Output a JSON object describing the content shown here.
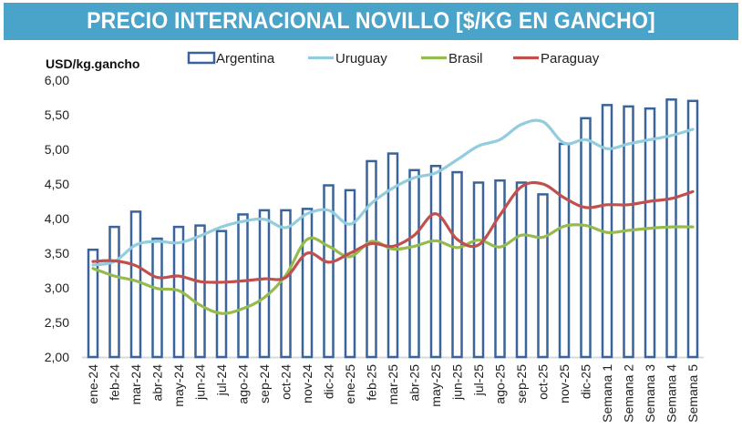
{
  "header": {
    "title": "PRECIO INTERNACIONAL NOVILLO [$/KG EN GANCHO]"
  },
  "chart_data": {
    "type": "bar+line",
    "title": "PRECIO INTERNACIONAL NOVILLO [$/KG EN GANCHO]",
    "ylabel": "USD/kg.gancho",
    "xlabel": "",
    "ylim": [
      2.0,
      6.0
    ],
    "yticks": [
      "2,00",
      "2,50",
      "3,00",
      "3,50",
      "4,00",
      "4,50",
      "5,00",
      "5,50",
      "6,00"
    ],
    "ytick_values": [
      2.0,
      2.5,
      3.0,
      3.5,
      4.0,
      4.5,
      5.0,
      5.5,
      6.0
    ],
    "grid": false,
    "legend_position": "top",
    "categories": [
      "ene-24",
      "feb-24",
      "mar-24",
      "abr-24",
      "may-24",
      "jun-24",
      "jul-24",
      "ago-24",
      "sep-24",
      "oct-24",
      "nov-24",
      "dic-24",
      "ene-25",
      "feb-25",
      "mar-25",
      "abr-25",
      "may-25",
      "jun-25",
      "jul-25",
      "ago-25",
      "sep-25",
      "oct-25",
      "nov-25",
      "dic-25",
      "Semana 1",
      "Semana 2",
      "Semana 3",
      "Semana 4",
      "Semana 5"
    ],
    "series": [
      {
        "name": "Argentina",
        "kind": "bar",
        "color": "#3a6499",
        "values": [
          3.55,
          3.88,
          4.1,
          3.71,
          3.88,
          3.9,
          3.82,
          4.06,
          4.12,
          4.12,
          4.14,
          4.48,
          4.41,
          4.83,
          4.94,
          4.7,
          4.76,
          4.67,
          4.52,
          4.55,
          4.52,
          4.35,
          5.08,
          5.45,
          5.64,
          5.62,
          5.59,
          5.72,
          5.7
        ]
      },
      {
        "name": "Uruguay",
        "kind": "line",
        "color": "#92cddf",
        "values": [
          3.33,
          3.38,
          3.62,
          3.67,
          3.65,
          3.75,
          3.88,
          3.96,
          3.99,
          3.87,
          4.07,
          4.12,
          3.92,
          4.22,
          4.44,
          4.59,
          4.66,
          4.85,
          5.05,
          5.14,
          5.36,
          5.4,
          5.09,
          5.14,
          5.01,
          5.08,
          5.14,
          5.2,
          5.29
        ]
      },
      {
        "name": "Brasil",
        "kind": "line",
        "color": "#95bb4f",
        "values": [
          3.28,
          3.17,
          3.1,
          2.99,
          2.96,
          2.75,
          2.63,
          2.7,
          2.86,
          3.18,
          3.7,
          3.6,
          3.45,
          3.67,
          3.56,
          3.6,
          3.68,
          3.58,
          3.69,
          3.59,
          3.76,
          3.73,
          3.89,
          3.9,
          3.8,
          3.83,
          3.86,
          3.88,
          3.88
        ]
      },
      {
        "name": "Paraguay",
        "kind": "line",
        "color": "#c0504d",
        "values": [
          3.38,
          3.39,
          3.32,
          3.15,
          3.17,
          3.09,
          3.08,
          3.1,
          3.13,
          3.15,
          3.5,
          3.37,
          3.5,
          3.64,
          3.6,
          3.76,
          4.07,
          3.7,
          3.62,
          4.05,
          4.46,
          4.5,
          4.3,
          4.16,
          4.2,
          4.2,
          4.25,
          4.29,
          4.39
        ]
      }
    ]
  }
}
